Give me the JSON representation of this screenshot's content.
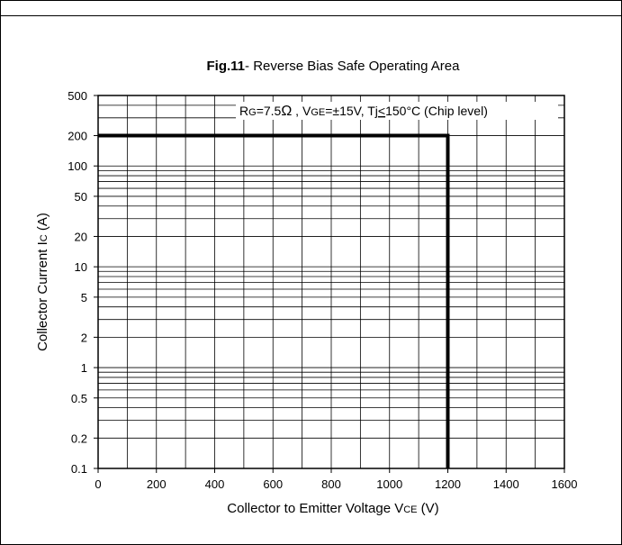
{
  "chart_data": {
    "type": "line",
    "title_bold": "Fig.11",
    "title_rest": "- Reverse Bias Safe Operating Area",
    "annotation": {
      "rg_main": "R",
      "rg_sub": "G",
      "rg_value": "=7.5",
      "ohm": "Ω",
      "vge_sep": " , ",
      "vge_main": "V",
      "vge_sub": "GE",
      "vge_value": "=±15V, ",
      "tj_main": "Tj",
      "tj_le": "<",
      "tj_value": "150°C (Chip level)"
    },
    "xlabel": {
      "main": "Collector to Emitter Voltage  V",
      "sub": "CE",
      "unit": "  (V)"
    },
    "ylabel": {
      "main": "Collector Current  I",
      "sub": "C",
      "unit": " (A)"
    },
    "x_scale": "linear",
    "y_scale": "log",
    "xlim": [
      0,
      1600
    ],
    "ylim": [
      0.1,
      500
    ],
    "x_ticks": [
      0,
      200,
      400,
      600,
      800,
      1000,
      1200,
      1400,
      1600
    ],
    "x_tick_labels": [
      "0",
      "200",
      "400",
      "600",
      "800",
      "1000",
      "1200",
      "1400",
      "1600"
    ],
    "y_ticks": [
      0.1,
      0.2,
      0.5,
      1,
      2,
      5,
      10,
      20,
      50,
      100,
      200,
      500
    ],
    "y_tick_labels": [
      "0.1",
      "0.2",
      "0.5",
      "1",
      "2",
      "5",
      "10",
      "20",
      "50",
      "100",
      "200",
      "500"
    ],
    "grid": true,
    "series": [
      {
        "color": "#000000",
        "x": [
          0,
          1200,
          1200
        ],
        "y": [
          200,
          200,
          0.1
        ]
      }
    ]
  }
}
